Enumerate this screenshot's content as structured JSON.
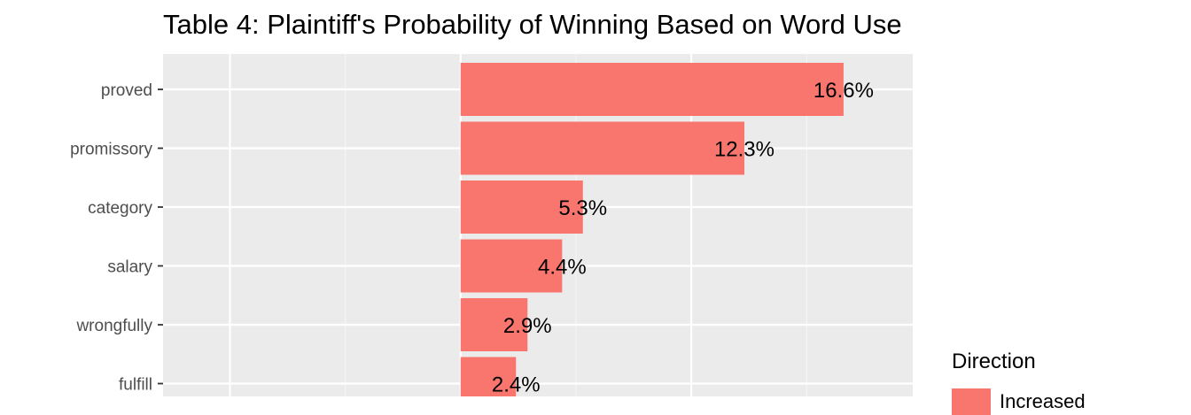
{
  "chart_data": {
    "type": "bar",
    "orientation": "horizontal",
    "title": "Table 4: Plaintiff's Probability of Winning Based on Word Use",
    "xlabel": "",
    "ylabel": "",
    "categories": [
      "proved",
      "promissory",
      "category",
      "salary",
      "wrongfully",
      "fulfill"
    ],
    "values": [
      16.6,
      12.3,
      5.3,
      4.4,
      2.9,
      2.4
    ],
    "value_labels": [
      "16.6%",
      "12.3%",
      "5.3%",
      "4.4%",
      "2.9%",
      "2.4%"
    ],
    "xlim": [
      -12.9,
      19.6
    ],
    "grid": true,
    "legend": {
      "title": "Direction",
      "position": "right",
      "entries": [
        {
          "label": "Increased",
          "color": "#F8766D"
        }
      ]
    },
    "colors": {
      "bar": "#F8766D",
      "panel": "#EBEBEB",
      "grid_major": "#FFFFFF",
      "grid_minor": "#F5F5F5",
      "tick_text": "#4D4D4D",
      "label_text": "#000000"
    }
  }
}
